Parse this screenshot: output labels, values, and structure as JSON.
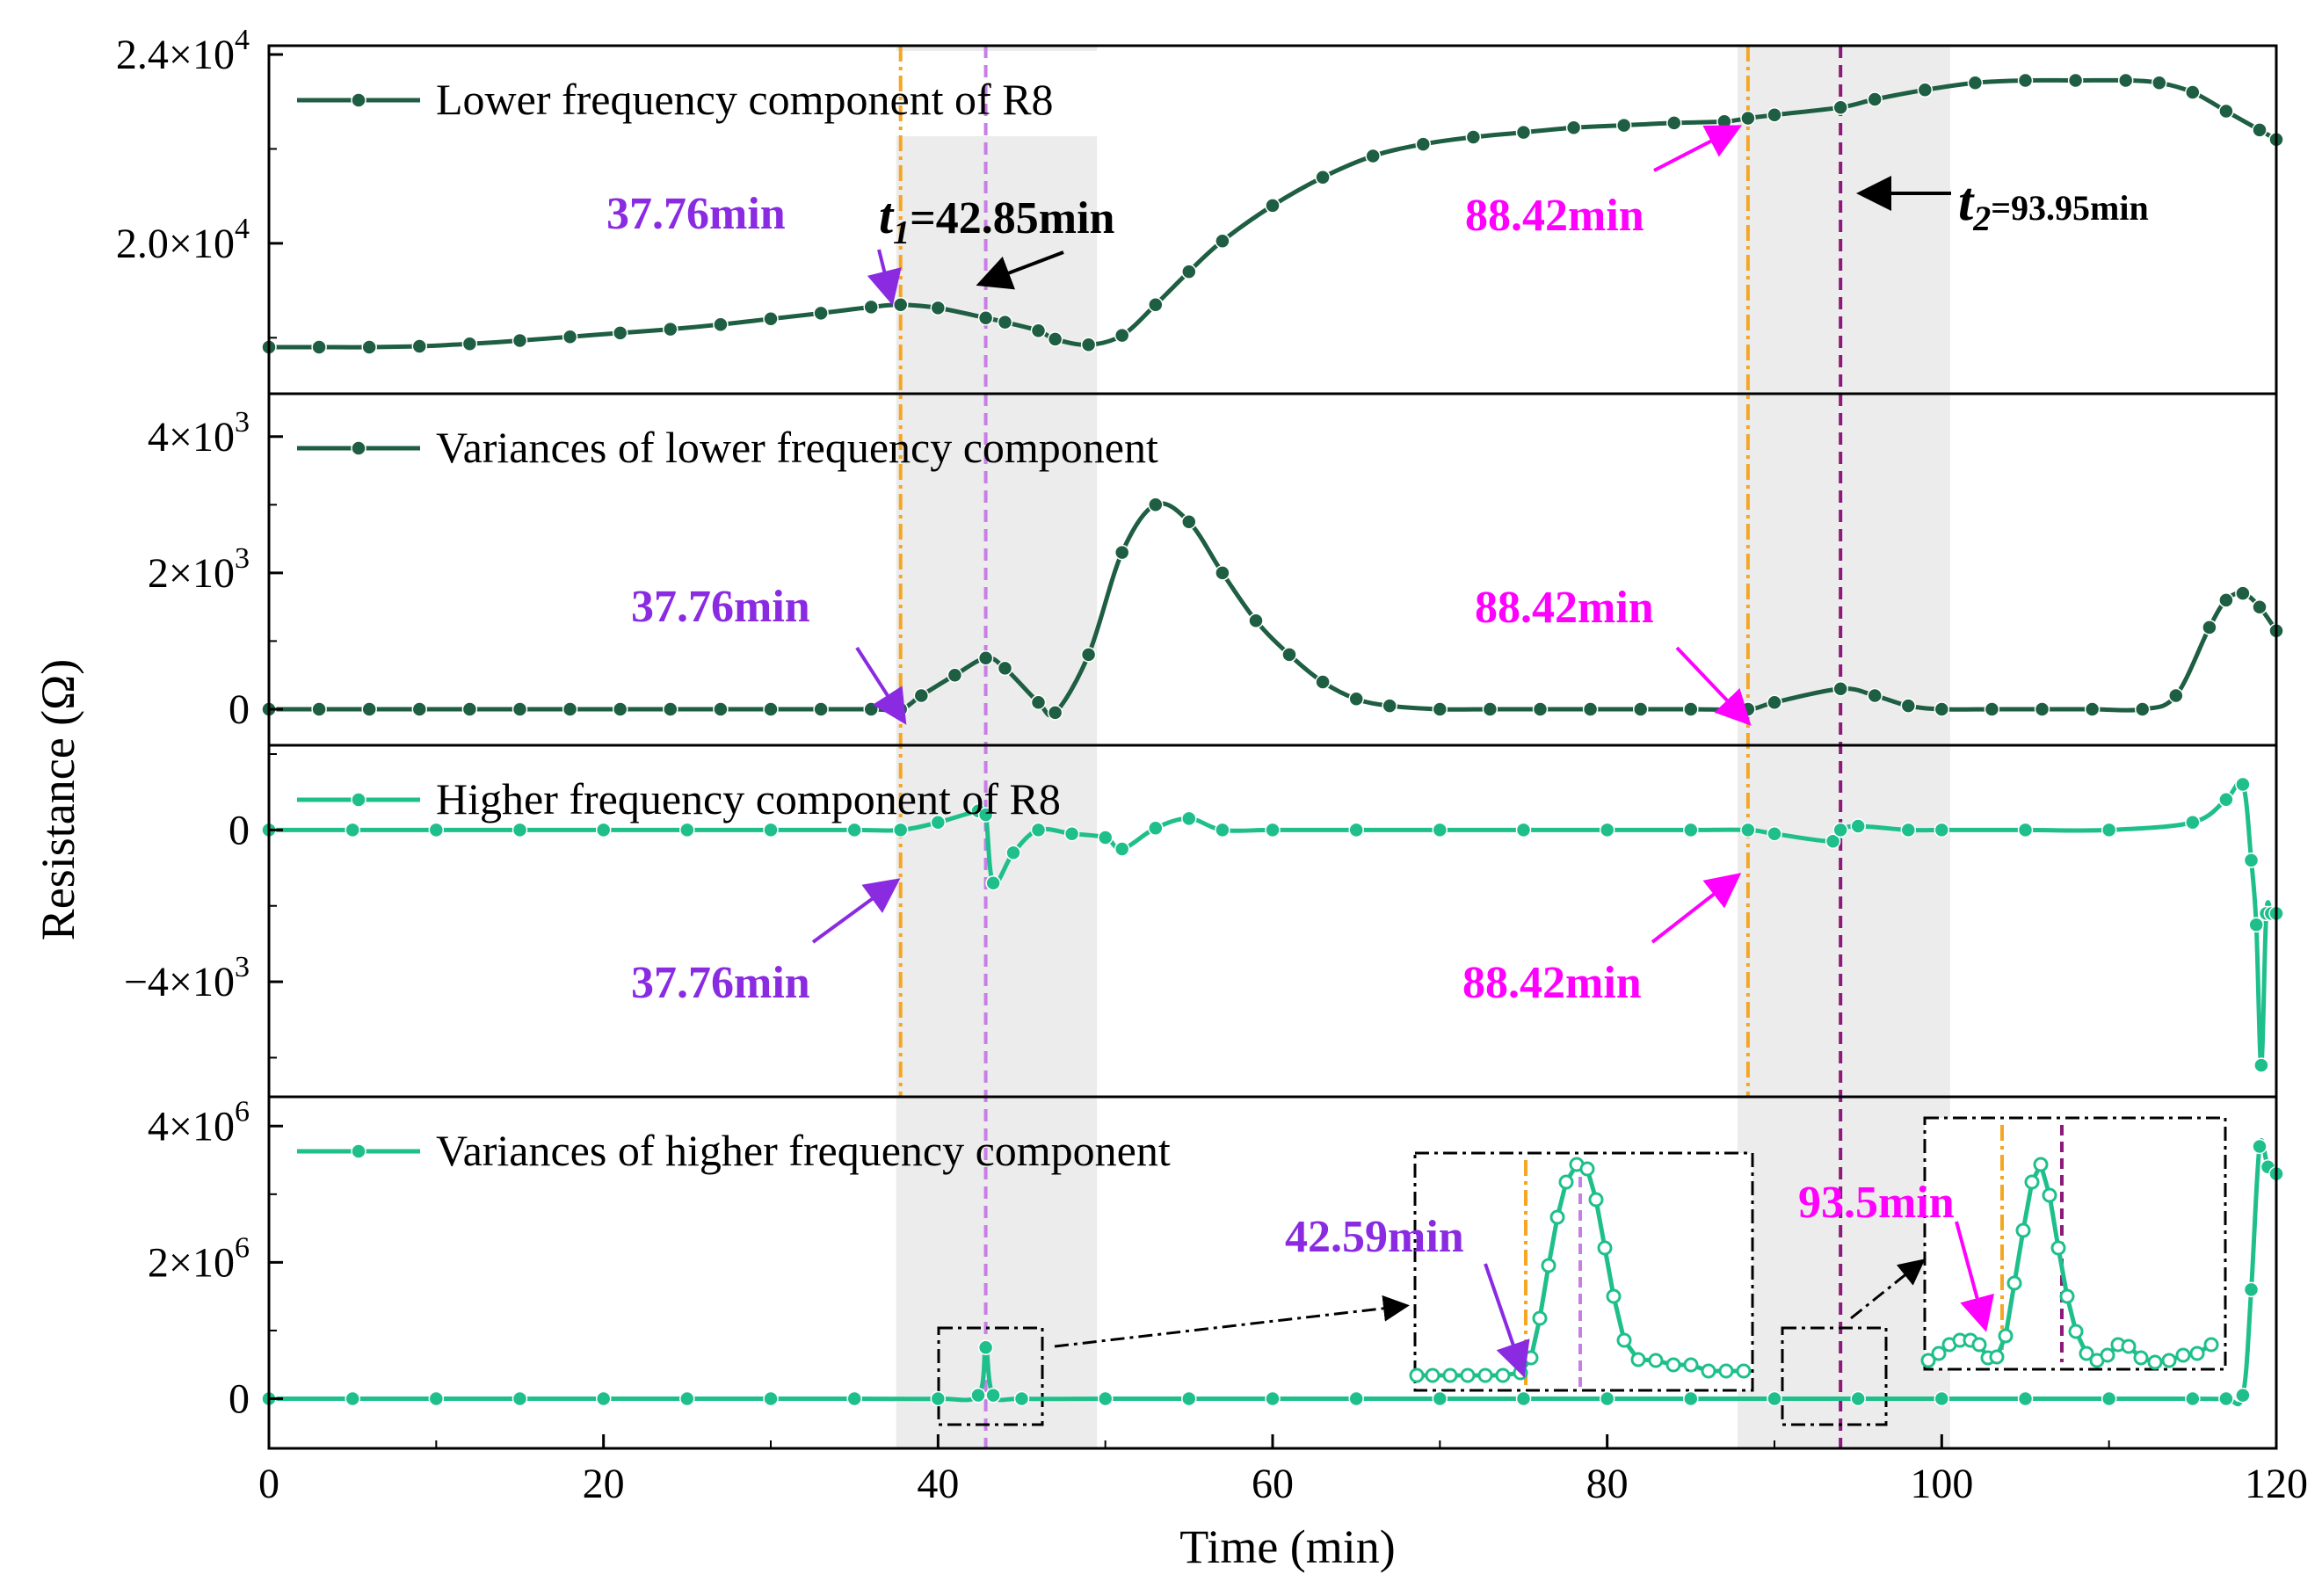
{
  "chart_data": {
    "type": "line",
    "xlabel": "Time (min)",
    "ylabel": "Resistance (Ω)",
    "xlim": [
      0,
      120
    ],
    "x_ticks": [
      "0",
      "20",
      "40",
      "60",
      "80",
      "100",
      "120"
    ],
    "colors": {
      "dark_green": "#1e5e42",
      "light_green": "#1fbf8c",
      "orange": "#f5a623",
      "purple_light": "#c77ee6",
      "purple_dark": "#8b1a7a",
      "violet": "#8a2be2",
      "magenta": "#ff00ff",
      "shade": "#ececec"
    },
    "panels": [
      {
        "legend": "Lower frequency component of R8",
        "ylim": [
          17000,
          24000
        ],
        "y_ticks": [
          {
            "value": 24000,
            "mantissa": "2.4×10",
            "exp": "4"
          },
          {
            "value": 20000,
            "mantissa": "2.0×10",
            "exp": "4"
          }
        ],
        "series": {
          "x": [
            0,
            3,
            6,
            9,
            12,
            15,
            18,
            21,
            24,
            27,
            30,
            33,
            36,
            37.76,
            40,
            42.85,
            44,
            46,
            47,
            49,
            51,
            53,
            55,
            57,
            60,
            63,
            66,
            69,
            72,
            75,
            78,
            81,
            84,
            87,
            88.42,
            90,
            93.95,
            96,
            99,
            102,
            105,
            108,
            111,
            113,
            115,
            117,
            119,
            120
          ],
          "values": [
            17800,
            17800,
            17800,
            17820,
            17870,
            17940,
            18020,
            18100,
            18180,
            18280,
            18400,
            18520,
            18650,
            18700,
            18630,
            18420,
            18330,
            18150,
            17970,
            17850,
            18050,
            18700,
            19400,
            20050,
            20800,
            21400,
            21850,
            22100,
            22250,
            22350,
            22450,
            22500,
            22550,
            22580,
            22650,
            22720,
            22880,
            23050,
            23250,
            23400,
            23450,
            23450,
            23450,
            23400,
            23200,
            22800,
            22400,
            22200
          ]
        }
      },
      {
        "legend": "Variances of lower frequency component",
        "ylim": [
          -400,
          4500
        ],
        "y_ticks": [
          {
            "value": 4000,
            "mantissa": "4×10",
            "exp": "3"
          },
          {
            "value": 2000,
            "mantissa": "2×10",
            "exp": "3"
          },
          {
            "value": 0,
            "mantissa": "0",
            "exp": ""
          }
        ],
        "series": {
          "x": [
            0,
            3,
            6,
            9,
            12,
            15,
            18,
            21,
            24,
            27,
            30,
            33,
            36,
            37.76,
            39,
            41,
            42.85,
            44,
            46,
            47,
            49,
            51,
            53,
            55,
            57,
            59,
            61,
            63,
            65,
            67,
            70,
            73,
            76,
            79,
            82,
            85,
            88.42,
            90,
            93.95,
            96,
            98,
            100,
            103,
            106,
            109,
            112,
            114,
            116,
            117,
            118,
            119,
            120
          ],
          "values": [
            0,
            0,
            0,
            0,
            0,
            0,
            0,
            0,
            0,
            0,
            0,
            0,
            0,
            0,
            200,
            500,
            750,
            600,
            100,
            -50,
            800,
            2300,
            3000,
            2750,
            2000,
            1300,
            800,
            400,
            150,
            50,
            0,
            0,
            0,
            0,
            0,
            0,
            0,
            100,
            300,
            200,
            50,
            0,
            0,
            0,
            0,
            0,
            200,
            1200,
            1600,
            1700,
            1500,
            1150
          ]
        }
      },
      {
        "legend": "Higher frequency component of R8",
        "ylim": [
          -6800,
          2000
        ],
        "y_ticks": [
          {
            "value": 0,
            "mantissa": "0",
            "exp": ""
          },
          {
            "value": -4000,
            "mantissa": "−4×10",
            "exp": "3"
          }
        ],
        "series": {
          "x": [
            0,
            5,
            10,
            15,
            20,
            25,
            30,
            35,
            37.76,
            40,
            42.4,
            42.85,
            43.3,
            44.5,
            46,
            48,
            50,
            51,
            53,
            55,
            57,
            60,
            65,
            70,
            75,
            80,
            85,
            88.42,
            90,
            93.5,
            93.95,
            95,
            98,
            100,
            105,
            110,
            115,
            117,
            118,
            118.5,
            118.8,
            119.1,
            119.4,
            119.7,
            120
          ],
          "values": [
            0,
            0,
            0,
            0,
            0,
            0,
            0,
            0,
            0,
            200,
            500,
            400,
            -1400,
            -600,
            0,
            -100,
            -200,
            -500,
            50,
            300,
            0,
            0,
            0,
            0,
            0,
            0,
            0,
            0,
            -100,
            -300,
            0,
            100,
            0,
            0,
            0,
            0,
            200,
            800,
            1200,
            -800,
            -2500,
            -6200,
            -2200,
            -2200,
            -2200
          ]
        }
      },
      {
        "legend": "Variances of higher frequency component",
        "ylim": [
          -600000,
          4300000
        ],
        "y_ticks": [
          {
            "value": 4000000,
            "mantissa": "4×10",
            "exp": "6"
          },
          {
            "value": 2000000,
            "mantissa": "2×10",
            "exp": "6"
          },
          {
            "value": 0,
            "mantissa": "0",
            "exp": ""
          }
        ],
        "series": {
          "x": [
            0,
            5,
            10,
            15,
            20,
            25,
            30,
            35,
            40,
            42.4,
            42.85,
            43.3,
            45,
            50,
            55,
            60,
            65,
            70,
            75,
            80,
            85,
            90,
            95,
            100,
            105,
            110,
            115,
            117,
            118,
            118.5,
            119,
            119.5,
            120
          ],
          "values": [
            0,
            0,
            0,
            0,
            0,
            0,
            0,
            0,
            0,
            50000,
            750000,
            50000,
            0,
            0,
            0,
            0,
            0,
            0,
            0,
            0,
            0,
            0,
            0,
            0,
            0,
            0,
            0,
            0,
            50000,
            1600000,
            3700000,
            3400000,
            3300000
          ]
        }
      }
    ],
    "annotations": {
      "p1_a": "37.76min",
      "p1_t1_sym": "t",
      "p1_t1_sub": "1",
      "p1_t1_val": "=42.85min",
      "p1_b": "88.42min",
      "p1_t2_sym": "t",
      "p1_t2_sub": "2",
      "p1_t2_val": "=93.95min",
      "p2_a": "37.76min",
      "p2_b": "88.42min",
      "p3_a": "37.76min",
      "p3_b": "88.42min",
      "p4_a": "42.59min",
      "p4_b": "93.5min"
    }
  }
}
